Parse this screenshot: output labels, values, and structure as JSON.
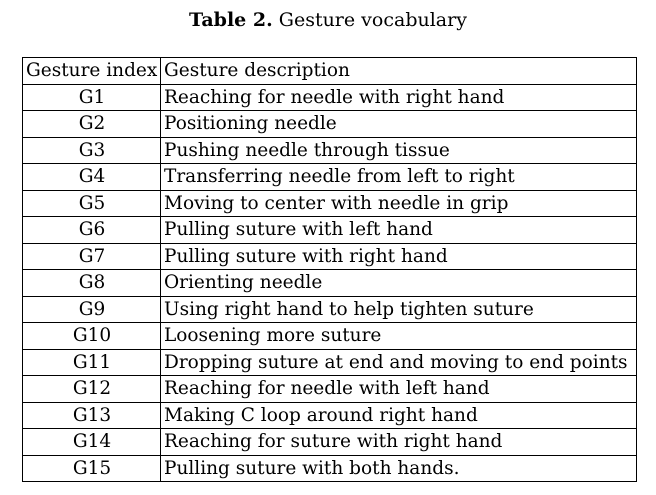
{
  "caption": {
    "label": "Table 2.",
    "title": "Gesture vocabulary"
  },
  "table": {
    "headers": [
      "Gesture index",
      "Gesture description"
    ],
    "rows": [
      [
        "G1",
        "Reaching for needle with right hand"
      ],
      [
        "G2",
        "Positioning needle"
      ],
      [
        "G3",
        "Pushing needle through tissue"
      ],
      [
        "G4",
        "Transferring needle from left to right"
      ],
      [
        "G5",
        "Moving to center with needle in grip"
      ],
      [
        "G6",
        "Pulling suture with left hand"
      ],
      [
        "G7",
        "Pulling suture with right hand"
      ],
      [
        "G8",
        "Orienting needle"
      ],
      [
        "G9",
        "Using right hand to help tighten suture"
      ],
      [
        "G10",
        "Loosening more suture"
      ],
      [
        "G11",
        "Dropping suture at end and moving to end points"
      ],
      [
        "G12",
        "Reaching for needle with left hand"
      ],
      [
        "G13",
        "Making C loop around right hand"
      ],
      [
        "G14",
        "Reaching for suture with right hand"
      ],
      [
        "G15",
        "Pulling suture with both hands."
      ]
    ]
  }
}
